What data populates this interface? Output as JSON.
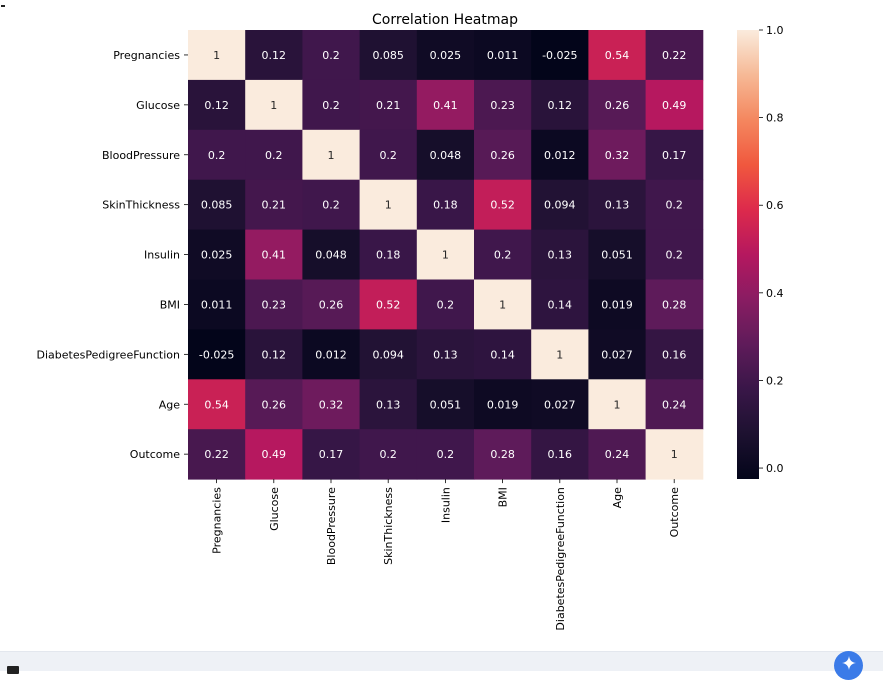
{
  "chart_data": {
    "type": "heatmap",
    "title": "Correlation Heatmap",
    "xlabel": "",
    "ylabel": "",
    "colormap": "rocket",
    "vmin": -0.025,
    "vmax": 1.0,
    "annotated": true,
    "colorbar": {
      "position": "right",
      "ticks": [
        "0.0",
        "0.2",
        "0.4",
        "0.6",
        "0.8",
        "1.0"
      ],
      "tick_values": [
        0.0,
        0.2,
        0.4,
        0.6,
        0.8,
        1.0
      ]
    },
    "x_labels": [
      "Pregnancies",
      "Glucose",
      "BloodPressure",
      "SkinThickness",
      "Insulin",
      "BMI",
      "DiabetesPedigreeFunction",
      "Age",
      "Outcome"
    ],
    "y_labels": [
      "Pregnancies",
      "Glucose",
      "BloodPressure",
      "SkinThickness",
      "Insulin",
      "BMI",
      "DiabetesPedigreeFunction",
      "Age",
      "Outcome"
    ],
    "values": [
      [
        1,
        0.12,
        0.2,
        0.085,
        0.025,
        0.011,
        -0.025,
        0.54,
        0.22
      ],
      [
        0.12,
        1,
        0.2,
        0.21,
        0.41,
        0.23,
        0.12,
        0.26,
        0.49
      ],
      [
        0.2,
        0.2,
        1,
        0.2,
        0.048,
        0.26,
        0.012,
        0.32,
        0.17
      ],
      [
        0.085,
        0.21,
        0.2,
        1,
        0.18,
        0.52,
        0.094,
        0.13,
        0.2
      ],
      [
        0.025,
        0.41,
        0.048,
        0.18,
        1,
        0.2,
        0.13,
        0.051,
        0.2
      ],
      [
        0.011,
        0.23,
        0.26,
        0.52,
        0.2,
        1,
        0.14,
        0.019,
        0.28
      ],
      [
        -0.025,
        0.12,
        0.012,
        0.094,
        0.13,
        0.14,
        1,
        0.027,
        0.16
      ],
      [
        0.54,
        0.26,
        0.32,
        0.13,
        0.051,
        0.019,
        0.027,
        1,
        0.24
      ],
      [
        0.22,
        0.49,
        0.17,
        0.2,
        0.2,
        0.28,
        0.16,
        0.24,
        1
      ]
    ]
  },
  "ui": {
    "bottom_bar_icon": "terminal-icon",
    "assistant_button_icon": "sparkle-icon",
    "accent_color": "#3b7be8"
  }
}
